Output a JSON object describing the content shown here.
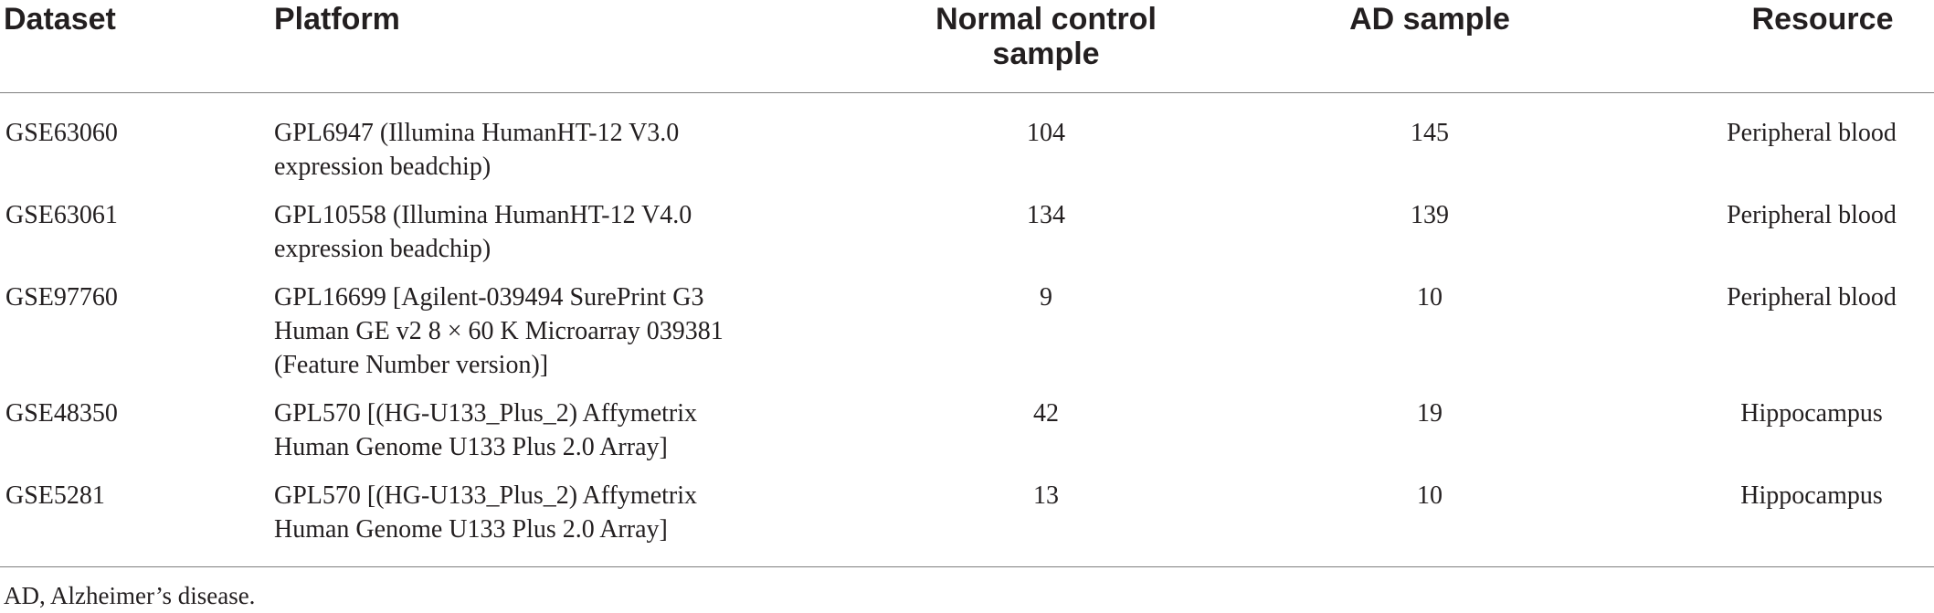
{
  "table": {
    "headers": {
      "dataset": "Dataset",
      "platform": "Platform",
      "normal_line1": "Normal control",
      "normal_line2": "sample",
      "ad": "AD sample",
      "resource": "Resource"
    },
    "rows": [
      {
        "dataset": "GSE63060",
        "platform_lines": [
          "GPL6947 (Illumina HumanHT-12 V3.0",
          "expression beadchip)"
        ],
        "normal": "104",
        "ad": "145",
        "resource": "Peripheral blood"
      },
      {
        "dataset": "GSE63061",
        "platform_lines": [
          "GPL10558 (Illumina HumanHT-12 V4.0",
          "expression beadchip)"
        ],
        "normal": "134",
        "ad": "139",
        "resource": "Peripheral blood"
      },
      {
        "dataset": "GSE97760",
        "platform_lines": [
          "GPL16699 [Agilent-039494 SurePrint G3",
          "Human GE v2 8 × 60 K Microarray 039381",
          "(Feature Number version)]"
        ],
        "normal": "9",
        "ad": "10",
        "resource": "Peripheral blood"
      },
      {
        "dataset": "GSE48350",
        "platform_lines": [
          "GPL570 [(HG-U133_Plus_2) Affymetrix",
          "Human Genome U133 Plus 2.0 Array]"
        ],
        "normal": "42",
        "ad": "19",
        "resource": "Hippocampus"
      },
      {
        "dataset": "GSE5281",
        "platform_lines": [
          "GPL570 [(HG-U133_Plus_2) Affymetrix",
          "Human Genome U133 Plus 2.0 Array]"
        ],
        "normal": "13",
        "ad": "10",
        "resource": "Hippocampus"
      }
    ]
  },
  "footnote": "AD, Alzheimer’s disease."
}
